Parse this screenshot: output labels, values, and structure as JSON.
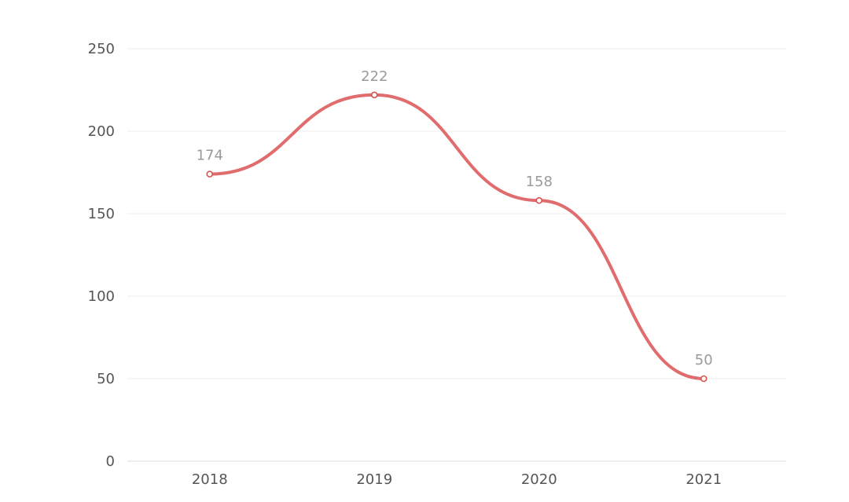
{
  "chart_data": {
    "type": "line",
    "smooth": true,
    "categories": [
      "2018",
      "2019",
      "2020",
      "2021"
    ],
    "series": [
      {
        "values": [
          174,
          222,
          158,
          50
        ]
      }
    ],
    "ylim": [
      0,
      250
    ],
    "yticks": [
      0,
      50,
      100,
      150,
      200,
      250
    ],
    "grid": true,
    "show_data_labels": true,
    "colors": {
      "line": "#e06c6e",
      "marker_stroke": "#d9534f",
      "marker_fill": "#ffffff",
      "grid": "#eeeeee",
      "axis": "#dddddd",
      "tick_text": "#555555",
      "data_label_text": "#9a9a9a"
    }
  }
}
